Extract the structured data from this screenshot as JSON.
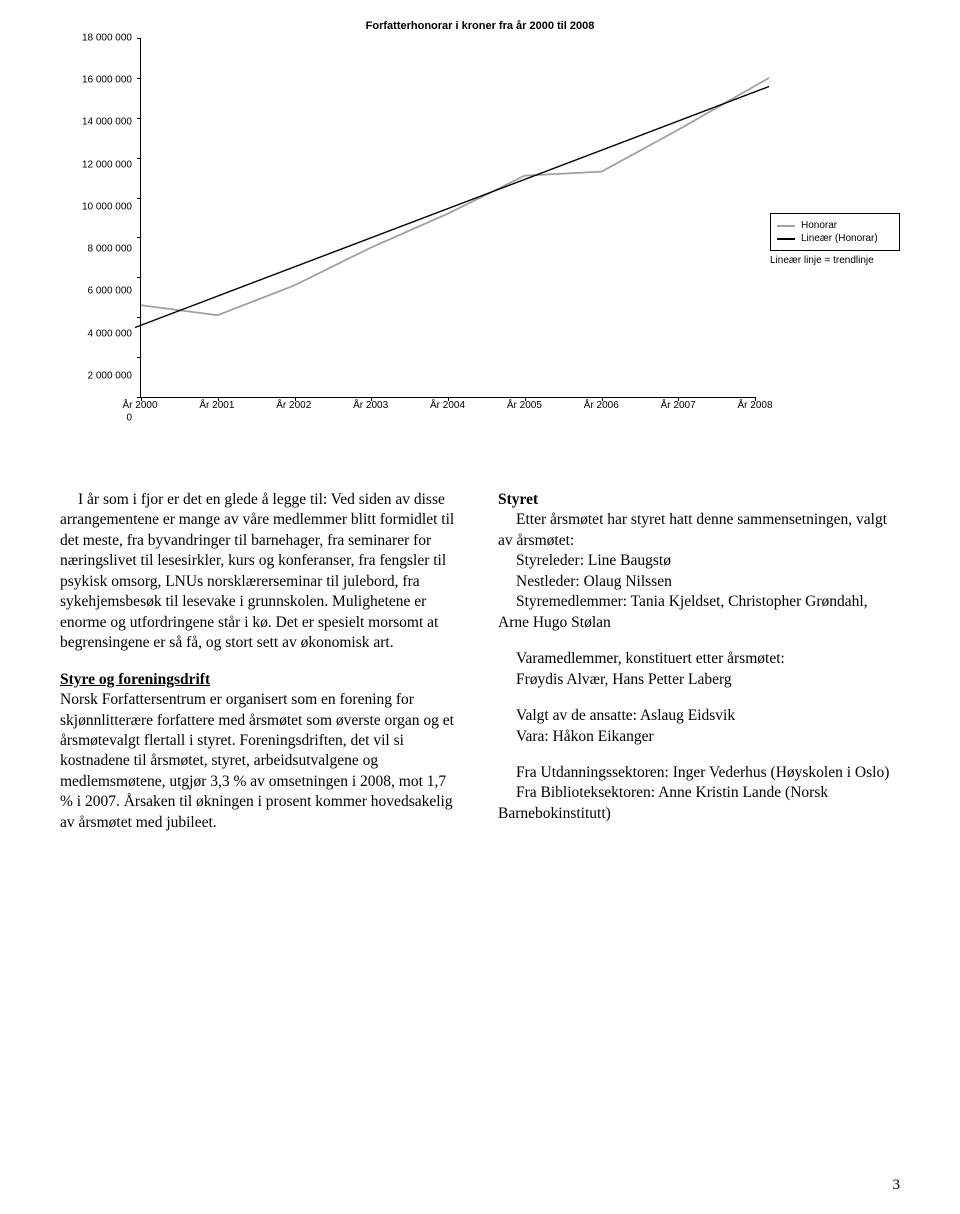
{
  "chart": {
    "type": "line",
    "title": "Forfatterhonorar i kroner fra år 2000 til 2008",
    "title_fontsize": 11,
    "label_fontsize": 10,
    "background_color": "#ffffff",
    "axis_color": "#000000",
    "ylim": [
      0,
      18000000
    ],
    "ytick_step": 2000000,
    "yticks": [
      {
        "v": 0,
        "label": "0"
      },
      {
        "v": 2000000,
        "label": "2 000 000"
      },
      {
        "v": 4000000,
        "label": "4 000 000"
      },
      {
        "v": 6000000,
        "label": "6 000 000"
      },
      {
        "v": 8000000,
        "label": "8 000 000"
      },
      {
        "v": 10000000,
        "label": "10 000 000"
      },
      {
        "v": 12000000,
        "label": "12 000 000"
      },
      {
        "v": 14000000,
        "label": "14 000 000"
      },
      {
        "v": 16000000,
        "label": "16 000 000"
      },
      {
        "v": 18000000,
        "label": "18 000 000"
      }
    ],
    "xcategories": [
      "År 2000",
      "År 2001",
      "År 2002",
      "År 2003",
      "År 2004",
      "År 2005",
      "År 2006",
      "År 2007",
      "År 2008"
    ],
    "series": {
      "honorar": {
        "label": "Honorar",
        "color": "#a0a0a0",
        "line_width": 1.8,
        "values": [
          4600000,
          4100000,
          5600000,
          7500000,
          9200000,
          11100000,
          11300000,
          13400000,
          15600000
        ]
      },
      "linear": {
        "label": "Lineær (Honorar)",
        "color": "#000000",
        "line_width": 1.4,
        "trend_start": 3600000,
        "trend_end": 15300000
      }
    },
    "legend_note": "Lineær linje = trendlinje"
  },
  "left": {
    "p1": "I år som i fjor er det en glede å legge til: Ved siden av disse arrangementene er mange av våre medlemmer blitt formidlet til det meste, fra byvandringer til barnehager, fra seminarer for næringslivet til lesesirkler, kurs og konferanser, fra fengsler til psykisk omsorg, LNUs norsklærerseminar til julebord, fra sykehjemsbesøk til lesevake i grunnskolen. Mulighetene er enorme og utfordringene står i kø. Det er spesielt morsomt at begrensingene er så få, og stort sett av økonomisk art.",
    "h1": "Styre og foreningsdrift",
    "p2": "Norsk Forfattersentrum er organisert som en forening for skjønnlitterære forfattere med årsmøtet som øverste organ og et årsmøtevalgt flertall i styret. Foreningsdriften, det vil si kostnadene til årsmøtet, styret, arbeidsutvalgene og medlemsmøtene, utgjør 3,3 % av omsetningen i 2008, mot 1,7 % i 2007. Årsaken til økningen i prosent kommer hovedsakelig av årsmøtet med jubileet."
  },
  "right": {
    "h1": "Styret",
    "intro": "Etter årsmøtet har styret hatt denne sammensetningen, valgt av årsmøtet:",
    "role1": "Styreleder: Line Baugstø",
    "role2": "Nestleder: Olaug Nilssen",
    "role3": "Styremedlemmer: Tania Kjeldset, Christopher Grøndahl, Arne Hugo Stølan",
    "vara_h": "Varamedlemmer, konstituert etter årsmøtet:",
    "vara": "Frøydis Alvær, Hans Petter Laberg",
    "ansatte1": "Valgt av de ansatte: Aslaug Eidsvik",
    "ansatte2": "Vara: Håkon Eikanger",
    "utd": "Fra Utdanningssektoren: Inger Vederhus (Høyskolen i Oslo)",
    "bib": "Fra Biblioteksektoren: Anne Kristin Lande (Norsk Barnebokinstitutt)"
  },
  "page_number": "3"
}
